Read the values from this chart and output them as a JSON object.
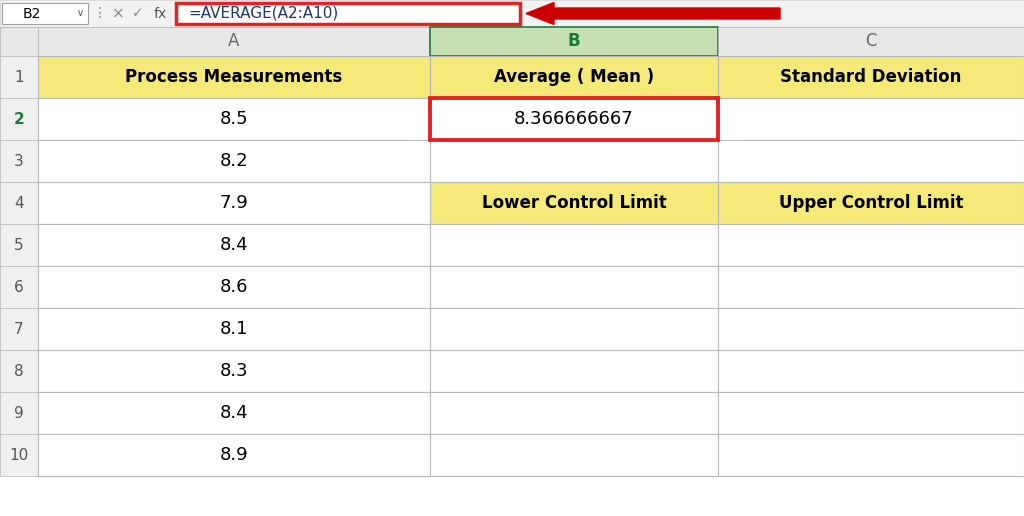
{
  "formula_bar_cell": "B2",
  "formula_bar_text": "=AVERAGE(A2:A10)",
  "col_headers": [
    "A",
    "B",
    "C"
  ],
  "measurements": [
    "8.5",
    "8.2",
    "7.9",
    "8.4",
    "8.6",
    "8.1",
    "8.3",
    "8.4",
    "8.9"
  ],
  "header_row": [
    "Process Measurements",
    "Average ( Mean )",
    "Standard Deviation"
  ],
  "b2_value": "8.366666667",
  "b4_label": "Lower Control Limit",
  "c4_label": "Upper Control Limit",
  "yellow_fill": "#F5E97A",
  "white_bg": "#ffffff",
  "grid_color": "#b8b8b8",
  "red_border": "#E52222",
  "green_col_header_b": "#1a7a3c",
  "formula_box_border": "#E52222",
  "arrow_color": "#CC0000",
  "top_bar_bg": "#f2f2f2",
  "row_header_bg": "#f2f2f2",
  "col_b_header_bg": "#c6e0b4",
  "row2_num_color": "#1a7a3c",
  "formula_text_color": "#1f3864"
}
